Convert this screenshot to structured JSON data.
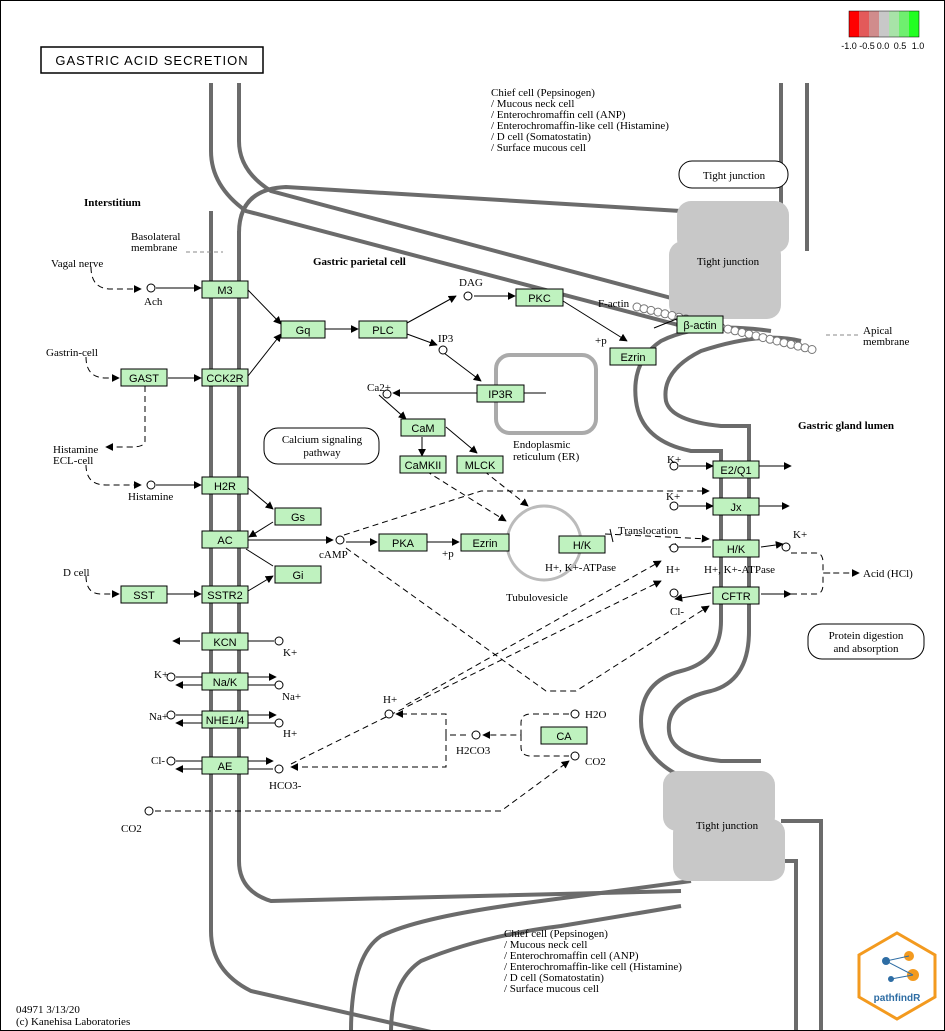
{
  "title": "GASTRIC ACID SECRETION",
  "legend": {
    "labels": [
      "-1.0",
      "-0.5",
      "0.0",
      "0.5",
      "1.0"
    ],
    "colors": [
      "#ff0000",
      "#e35a5a",
      "#d08c8c",
      "#c8c8c8",
      "#a8e3a8",
      "#6fef6f",
      "#22ff22"
    ]
  },
  "regions": {
    "interstitium": "Interstitium",
    "parietal_cell": "Gastric parietal cell",
    "gland_lumen": "Gastric gland lumen",
    "basolateral": [
      "Basolateral",
      "membrane"
    ],
    "apical": [
      "Apical",
      "membrane"
    ],
    "er": [
      "Endoplasmic",
      "reticulum (ER)"
    ],
    "tubulovesicle": "Tubulovesicle",
    "translocation": "Translocation",
    "tight_junction": "Tight junction"
  },
  "cell_notes": {
    "top": [
      "Chief cell (Pepsinogen)",
      "/ Mucous neck cell",
      "/ Enterochromaffin cell (ANP)",
      "/ Enterochromaffin-like cell (Histamine)",
      "/ D cell (Somatostatin)",
      "/ Surface mucous cell"
    ],
    "bottom": [
      "Chief cell (Pepsinogen)",
      "/ Mucous neck cell",
      "/ Enterochromaffin cell (ANP)",
      "/ Enterochromaffin-like cell (Histamine)",
      "/ D cell (Somatostatin)",
      "/ Surface mucous cell"
    ]
  },
  "maps": {
    "calcium": [
      "Calcium signaling",
      "pathway"
    ],
    "protein": [
      "Protein digestion",
      "and absorption"
    ]
  },
  "sources": {
    "vagal": "Vagal nerve",
    "gastrin": "Gastrin-cell",
    "histamine_ecl": [
      "Histamine",
      "ECL-cell"
    ],
    "dcell": "D cell"
  },
  "genes": {
    "M3": "M3",
    "CCK2R": "CCK2R",
    "GAST": "GAST",
    "H2R": "H2R",
    "AC": "AC",
    "SSTR2": "SSTR2",
    "SST": "SST",
    "Gq": "Gq",
    "PLC": "PLC",
    "PKC": "PKC",
    "Gs": "Gs",
    "Gi": "Gi",
    "IP3R": "IP3R",
    "CaM": "CaM",
    "CaMKII": "CaMKII",
    "MLCK": "MLCK",
    "PKA": "PKA",
    "Ezrin": "Ezrin",
    "Ezrin2": "Ezrin",
    "beta_actin": "β-actin",
    "HK_tv": "H/K",
    "E2Q1": "E2/Q1",
    "Jx": "Jx",
    "HK_ap": "H/K",
    "CFTR": "CFTR",
    "KCN": "KCN",
    "NaK": "Na/K",
    "NHE": "NHE1/4",
    "AE": "AE",
    "CA": "CA"
  },
  "compounds": {
    "ach": "Ach",
    "dag": "DAG",
    "ip3": "IP3",
    "ca": "Ca2+",
    "histamine": "Histamine",
    "camp": "cAMP",
    "p_pka": "+p",
    "p_ezrin": "+p",
    "factin": "F-actin",
    "k1": "K+",
    "k2": "K+",
    "k3": "K+",
    "k_kcn": "K+",
    "k_nak": "K+",
    "na_nak": "Na+",
    "na_nhe": "Na+",
    "h_nhe": "H+",
    "cl_ae": "Cl-",
    "hco3": "HCO3-",
    "h_ap": "H+",
    "cl_ap": "Cl-",
    "h_left": "H+",
    "h2co3": "H2CO3",
    "h2o": "H2O",
    "co2_r": "CO2",
    "co2_l": "CO2",
    "hk_atpase_tv": "H+, K+-ATPase",
    "hk_atpase_ap": "H+, K+-ATPase",
    "acid": "Acid (HCl)"
  },
  "footer": {
    "id": "04971 3/13/20",
    "copyright": "(c) Kanehisa Laboratories"
  },
  "badge": {
    "text": "pathfindR",
    "accent": "#f39a1f",
    "node": "#2e6da4"
  }
}
